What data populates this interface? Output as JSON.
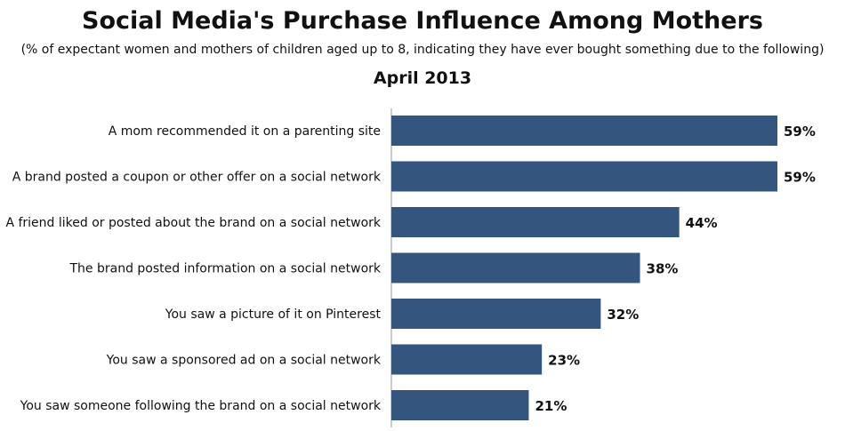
{
  "chart_data": {
    "type": "bar",
    "orientation": "horizontal",
    "title": "Social Media's Purchase Influence Among Mothers",
    "subtitle": "(% of expectant women and mothers of children aged up to 8, indicating they have ever bought something due to the following)",
    "period": "April 2013",
    "categories": [
      "A mom recommended it on a parenting site",
      "A brand posted a coupon or other offer on a social network",
      "A friend liked or posted about the brand on a social network",
      "The brand posted information on a social network",
      "You saw a picture of it on Pinterest",
      "You saw a sponsored ad on a social network",
      "You saw someone following the brand on a social network"
    ],
    "values": [
      59,
      59,
      44,
      38,
      32,
      23,
      21
    ],
    "value_labels": [
      "59%",
      "59%",
      "44%",
      "38%",
      "32%",
      "23%",
      "21%"
    ],
    "unit": "%",
    "xlim": [
      0,
      59
    ],
    "grid": false,
    "bar_color": "#34567e"
  }
}
